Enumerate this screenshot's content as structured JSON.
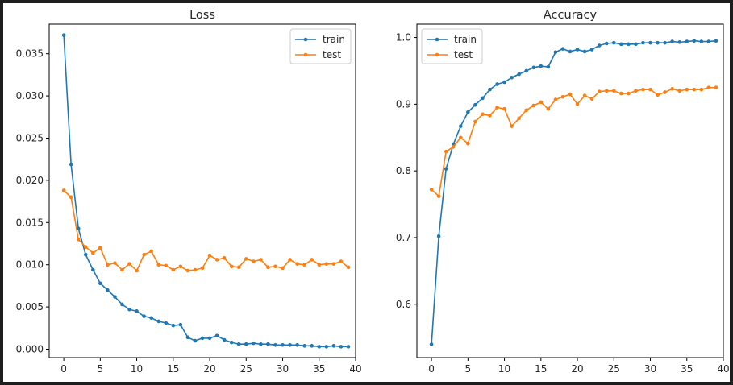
{
  "chart_data": [
    {
      "type": "line",
      "title": "Loss",
      "xlabel": "",
      "ylabel": "",
      "xlim": [
        -2,
        40
      ],
      "ylim": [
        -0.001,
        0.0385
      ],
      "xticks": [
        0,
        5,
        10,
        15,
        20,
        25,
        30,
        35,
        40
      ],
      "yticks": [
        0.0,
        0.005,
        0.01,
        0.015,
        0.02,
        0.025,
        0.03,
        0.035
      ],
      "ytick_labels": [
        "0.000",
        "0.005",
        "0.010",
        "0.015",
        "0.020",
        "0.025",
        "0.030",
        "0.035"
      ],
      "legend_position": "top-right",
      "series": [
        {
          "name": "train",
          "color": "#1f77b4",
          "values": [
            0.0372,
            0.0219,
            0.0143,
            0.0112,
            0.0094,
            0.0078,
            0.007,
            0.0062,
            0.0053,
            0.0047,
            0.0045,
            0.0039,
            0.0037,
            0.0033,
            0.0031,
            0.0028,
            0.0029,
            0.0014,
            0.001,
            0.0013,
            0.0013,
            0.0016,
            0.0011,
            0.0008,
            0.0006,
            0.0006,
            0.0007,
            0.0006,
            0.0006,
            0.0005,
            0.0005,
            0.0005,
            0.0005,
            0.0004,
            0.0004,
            0.0003,
            0.0003,
            0.0004,
            0.0003,
            0.0003
          ]
        },
        {
          "name": "test",
          "color": "#ff7f0e",
          "values": [
            0.0188,
            0.018,
            0.013,
            0.0121,
            0.0114,
            0.012,
            0.01,
            0.0102,
            0.0094,
            0.0101,
            0.0093,
            0.0112,
            0.0116,
            0.01,
            0.0099,
            0.0094,
            0.0098,
            0.0093,
            0.0094,
            0.0096,
            0.0111,
            0.0106,
            0.0108,
            0.0098,
            0.0097,
            0.0107,
            0.0104,
            0.0106,
            0.0097,
            0.0098,
            0.0096,
            0.0106,
            0.0101,
            0.01,
            0.0106,
            0.01,
            0.0101,
            0.0101,
            0.0104,
            0.0097
          ]
        }
      ]
    },
    {
      "type": "line",
      "title": "Accuracy",
      "xlabel": "",
      "ylabel": "",
      "xlim": [
        -2,
        40
      ],
      "ylim": [
        0.52,
        1.02
      ],
      "xticks": [
        0,
        5,
        10,
        15,
        20,
        25,
        30,
        35,
        40
      ],
      "yticks": [
        0.6,
        0.7,
        0.8,
        0.9,
        1.0
      ],
      "ytick_labels": [
        "0.6",
        "0.7",
        "0.8",
        "0.9",
        "1.0"
      ],
      "legend_position": "top-left",
      "series": [
        {
          "name": "train",
          "color": "#1f77b4",
          "values": [
            0.54,
            0.702,
            0.803,
            0.84,
            0.867,
            0.888,
            0.899,
            0.909,
            0.922,
            0.93,
            0.933,
            0.94,
            0.945,
            0.95,
            0.955,
            0.957,
            0.956,
            0.978,
            0.983,
            0.979,
            0.982,
            0.979,
            0.982,
            0.988,
            0.991,
            0.992,
            0.99,
            0.99,
            0.99,
            0.992,
            0.992,
            0.992,
            0.992,
            0.994,
            0.993,
            0.994,
            0.995,
            0.994,
            0.994,
            0.995
          ]
        },
        {
          "name": "test",
          "color": "#ff7f0e",
          "values": [
            0.772,
            0.762,
            0.829,
            0.836,
            0.85,
            0.841,
            0.874,
            0.885,
            0.883,
            0.895,
            0.893,
            0.867,
            0.879,
            0.891,
            0.898,
            0.903,
            0.893,
            0.907,
            0.911,
            0.915,
            0.9,
            0.913,
            0.908,
            0.919,
            0.92,
            0.92,
            0.916,
            0.916,
            0.92,
            0.922,
            0.922,
            0.914,
            0.918,
            0.923,
            0.92,
            0.922,
            0.922,
            0.922,
            0.925,
            0.925
          ]
        }
      ]
    }
  ]
}
